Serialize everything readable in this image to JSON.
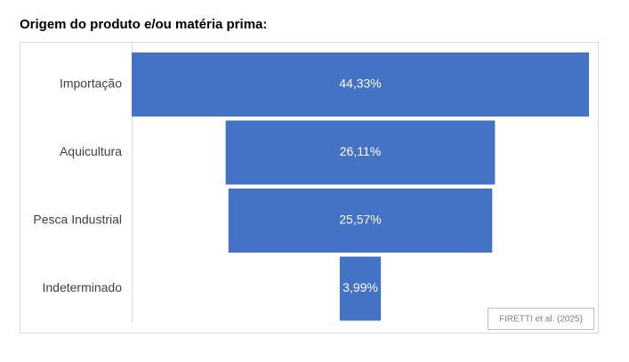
{
  "chart_data": {
    "type": "funnel",
    "title": "Origem do produto e/ou matéria prima:",
    "categories": [
      "Importação",
      "Aquicultura",
      "Pesca Industrial",
      "Indeterminado"
    ],
    "values": [
      44.33,
      26.11,
      25.57,
      3.99
    ],
    "value_labels": [
      "44,33%",
      "26,11%",
      "25,57%",
      "3,99%"
    ],
    "color": "#4472c4",
    "source": "FIRETTI et al. (2025)"
  }
}
